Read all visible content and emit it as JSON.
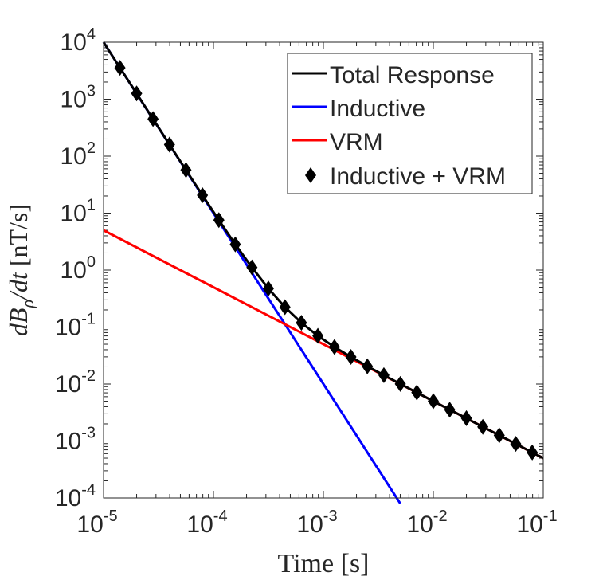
{
  "chart_data": {
    "type": "line",
    "title": "",
    "xlabel": "Time [s]",
    "ylabel_parts": [
      "dB",
      "ρ",
      "/dt",
      " [nT/s]"
    ],
    "xscale": "log",
    "yscale": "log",
    "xlim": [
      1e-05,
      0.1
    ],
    "ylim": [
      0.0001,
      10000.0
    ],
    "grid": false,
    "legend_placement": "top-right",
    "x_ticks": [
      {
        "base": "10",
        "exp": "-5"
      },
      {
        "base": "10",
        "exp": "-4"
      },
      {
        "base": "10",
        "exp": "-3"
      },
      {
        "base": "10",
        "exp": "-2"
      },
      {
        "base": "10",
        "exp": "-1"
      }
    ],
    "y_ticks": [
      {
        "base": "10",
        "exp": "-4"
      },
      {
        "base": "10",
        "exp": "-3"
      },
      {
        "base": "10",
        "exp": "-2"
      },
      {
        "base": "10",
        "exp": "-1"
      },
      {
        "base": "10",
        "exp": "0"
      },
      {
        "base": "10",
        "exp": "1"
      },
      {
        "base": "10",
        "exp": "2"
      },
      {
        "base": "10",
        "exp": "3"
      },
      {
        "base": "10",
        "exp": "4"
      }
    ],
    "series": [
      {
        "name": "Total Response",
        "style": "line",
        "color": "#000000",
        "x": [
          1e-05,
          1.41e-05,
          2e-05,
          2.82e-05,
          3.98e-05,
          5.62e-05,
          7.94e-05,
          0.000112,
          0.000158,
          0.000224,
          0.000316,
          0.000447,
          0.000631,
          0.000891,
          0.00126,
          0.00178,
          0.00251,
          0.00355,
          0.00501,
          0.00708,
          0.01,
          0.0141,
          0.02,
          0.0282,
          0.0398,
          0.0562,
          0.0794,
          0.1
        ],
        "y": [
          10005,
          3552,
          1261,
          449,
          159.7,
          57.1,
          20.6,
          7.53,
          2.83,
          1.114,
          0.474,
          0.224,
          0.119,
          0.0702,
          0.0447,
          0.0299,
          0.0205,
          0.0143,
          0.01006,
          0.00709,
          0.00501,
          0.00354,
          0.00251,
          0.00177,
          0.00126,
          0.000891,
          0.00063,
          0.0005
        ]
      },
      {
        "name": "Inductive",
        "style": "line",
        "color": "#0000ff",
        "x": [
          1e-05,
          0.005
        ],
        "y": [
          10000.0,
          8e-05
        ]
      },
      {
        "name": "VRM",
        "style": "line",
        "color": "#ff0000",
        "x": [
          1e-05,
          0.1
        ],
        "y": [
          5,
          0.0005
        ]
      },
      {
        "name": "Inductive + VRM",
        "style": "marker",
        "marker": "diamond",
        "color": "#000000",
        "x": [
          1.41e-05,
          2e-05,
          2.82e-05,
          3.98e-05,
          5.62e-05,
          7.94e-05,
          0.000112,
          0.000158,
          0.000224,
          0.000316,
          0.000447,
          0.000631,
          0.000891,
          0.00126,
          0.00178,
          0.00251,
          0.00355,
          0.00501,
          0.00708,
          0.01,
          0.0141,
          0.02,
          0.0282,
          0.0398,
          0.0562,
          0.0794
        ],
        "y": [
          3552,
          1261,
          449,
          159.7,
          57.1,
          20.6,
          7.53,
          2.83,
          1.114,
          0.474,
          0.224,
          0.119,
          0.0702,
          0.0447,
          0.0299,
          0.0205,
          0.0143,
          0.01006,
          0.00709,
          0.00501,
          0.00354,
          0.00251,
          0.00177,
          0.00126,
          0.000891,
          0.00063
        ]
      }
    ]
  }
}
